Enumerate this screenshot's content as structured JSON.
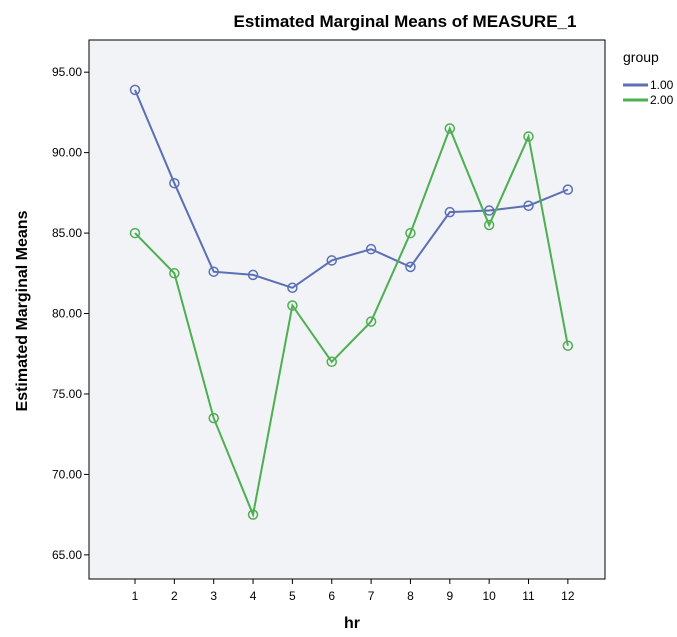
{
  "chart_data": {
    "type": "line",
    "title": "Estimated Marginal Means of MEASURE_1",
    "xlabel": "hr",
    "ylabel": "Estimated Marginal Means",
    "categories": [
      "1",
      "2",
      "3",
      "4",
      "5",
      "6",
      "7",
      "8",
      "9",
      "10",
      "11",
      "12"
    ],
    "ylim": [
      63.5,
      97.0
    ],
    "yticks": [
      65,
      70,
      75,
      80,
      85,
      90,
      95
    ],
    "ytick_labels": [
      "65.00",
      "70.00",
      "75.00",
      "80.00",
      "85.00",
      "90.00",
      "95.00"
    ],
    "grid": false,
    "legend": {
      "title": "group",
      "position": "right"
    },
    "series": [
      {
        "name": "1.00",
        "color": "#5b6fb5",
        "values": [
          93.9,
          88.1,
          82.6,
          82.4,
          81.6,
          83.3,
          84.0,
          82.9,
          86.3,
          86.4,
          86.7,
          87.7
        ]
      },
      {
        "name": "2.00",
        "color": "#4caf50",
        "values": [
          85.0,
          82.5,
          73.5,
          67.5,
          80.5,
          77.0,
          79.5,
          85.0,
          91.5,
          85.5,
          91.0,
          78.0
        ]
      }
    ]
  },
  "colors": {
    "plot_background": "#f2f3f6",
    "frame": "#000000"
  }
}
